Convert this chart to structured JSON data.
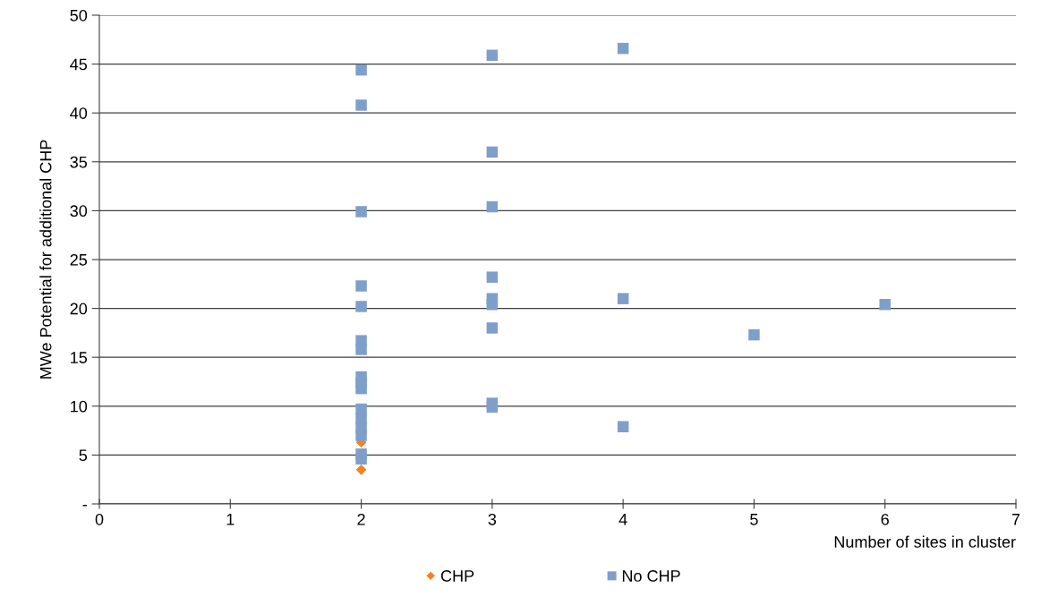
{
  "chart_data": {
    "type": "scatter",
    "xlabel": "Number of sites in cluster",
    "ylabel": "MWe Potential for additional CHP",
    "xlim": [
      0,
      7
    ],
    "xticks": [
      0,
      1,
      2,
      3,
      4,
      5,
      6,
      7
    ],
    "ylim": [
      0,
      50
    ],
    "yticks": [
      {
        "value": 0,
        "label": "-"
      },
      5,
      10,
      15,
      20,
      25,
      30,
      35,
      40,
      45,
      50
    ],
    "grid": "y",
    "legend": "bottom",
    "series": [
      {
        "name": "CHP",
        "color": "#f58220",
        "marker": "diamond",
        "x": [
          2,
          2
        ],
        "values": [
          6.3,
          3.5
        ]
      },
      {
        "name": "No CHP",
        "color": "#7f9fcb",
        "marker": "square",
        "x": [
          2,
          2,
          2,
          2,
          2,
          2,
          2,
          2,
          2,
          2,
          2,
          2,
          2,
          2,
          2,
          2,
          3,
          3,
          3,
          3,
          3,
          3,
          3,
          3,
          3,
          4,
          4,
          4,
          5,
          6
        ],
        "values": [
          44.4,
          40.8,
          29.9,
          22.3,
          20.2,
          16.7,
          15.8,
          13.0,
          12.4,
          11.8,
          9.7,
          8.7,
          7.8,
          7.0,
          5.1,
          4.6,
          45.9,
          36.0,
          30.4,
          23.2,
          21.0,
          20.4,
          18.0,
          10.3,
          9.9,
          46.6,
          21.0,
          7.9,
          17.3,
          20.4
        ]
      }
    ]
  }
}
